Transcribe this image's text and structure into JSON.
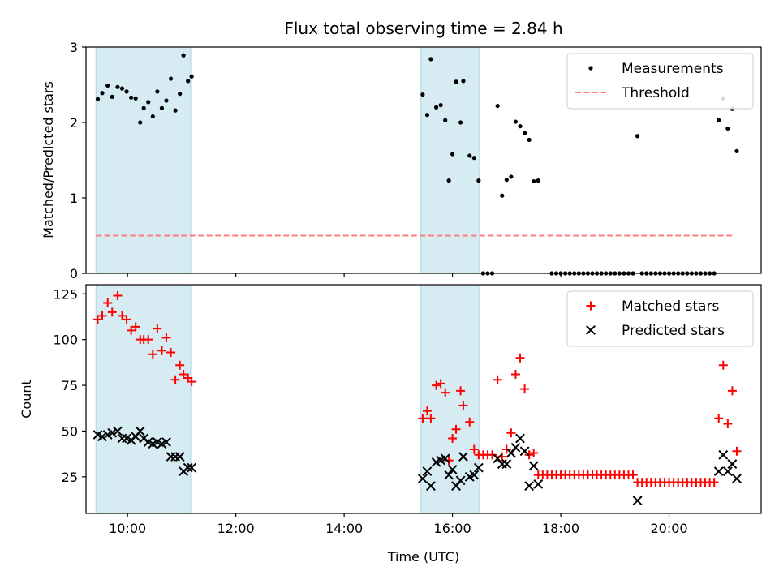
{
  "chart_data": [
    {
      "type": "scatter",
      "title": "Flux total observing time = 2.84 h",
      "ylabel": "Matched/Predicted stars",
      "xlabel": "",
      "xlim": [
        "09:14",
        "21:42"
      ],
      "ylim": [
        0,
        3
      ],
      "yticks": [
        0,
        1,
        2,
        3
      ],
      "legend": {
        "placement": "top-right",
        "entries": [
          "Measurements",
          "Threshold"
        ]
      },
      "highlight_spans": [
        [
          "09:25",
          "11:10"
        ],
        [
          "15:25",
          "16:30"
        ]
      ],
      "threshold": {
        "name": "Threshold",
        "value": 0.5,
        "x": [
          "09:25",
          "21:10"
        ],
        "color": "#ff7f7f",
        "style": "dashed"
      },
      "series": [
        {
          "name": "Measurements",
          "marker": "dot",
          "color": "#000000",
          "points": [
            [
              "09:27",
              2.31
            ],
            [
              "09:32",
              2.39
            ],
            [
              "09:38",
              2.49
            ],
            [
              "09:43",
              2.34
            ],
            [
              "09:49",
              2.47
            ],
            [
              "09:54",
              2.45
            ],
            [
              "09:59",
              2.41
            ],
            [
              "10:04",
              2.33
            ],
            [
              "10:09",
              2.32
            ],
            [
              "10:14",
              2.0
            ],
            [
              "10:18",
              2.19
            ],
            [
              "10:23",
              2.27
            ],
            [
              "10:28",
              2.08
            ],
            [
              "10:33",
              2.41
            ],
            [
              "10:38",
              2.19
            ],
            [
              "10:43",
              2.29
            ],
            [
              "10:48",
              2.58
            ],
            [
              "10:53",
              2.16
            ],
            [
              "10:58",
              2.38
            ],
            [
              "11:02",
              2.89
            ],
            [
              "11:07",
              2.55
            ],
            [
              "11:11",
              2.61
            ],
            [
              "15:27",
              2.37
            ],
            [
              "15:32",
              2.1
            ],
            [
              "15:36",
              2.84
            ],
            [
              "15:42",
              2.2
            ],
            [
              "15:47",
              2.23
            ],
            [
              "15:52",
              2.03
            ],
            [
              "15:56",
              1.23
            ],
            [
              "16:00",
              1.58
            ],
            [
              "16:04",
              2.54
            ],
            [
              "16:09",
              2.0
            ],
            [
              "16:12",
              2.55
            ],
            [
              "16:19",
              1.56
            ],
            [
              "16:24",
              1.53
            ],
            [
              "16:29",
              1.23
            ],
            [
              "16:34",
              0
            ],
            [
              "16:39",
              0
            ],
            [
              "16:44",
              0
            ],
            [
              "16:50",
              2.22
            ],
            [
              "16:55",
              1.03
            ],
            [
              "17:00",
              1.24
            ],
            [
              "17:05",
              1.28
            ],
            [
              "17:10",
              2.01
            ],
            [
              "17:15",
              1.95
            ],
            [
              "17:20",
              1.86
            ],
            [
              "17:25",
              1.77
            ],
            [
              "17:30",
              1.22
            ],
            [
              "17:35",
              1.23
            ],
            [
              "17:50",
              0
            ],
            [
              "17:55",
              0
            ],
            [
              "18:00",
              0
            ],
            [
              "18:05",
              0
            ],
            [
              "18:10",
              0
            ],
            [
              "18:15",
              0
            ],
            [
              "18:20",
              0
            ],
            [
              "18:25",
              0
            ],
            [
              "18:30",
              0
            ],
            [
              "18:35",
              0
            ],
            [
              "18:40",
              0
            ],
            [
              "18:45",
              0
            ],
            [
              "18:50",
              0
            ],
            [
              "18:55",
              0
            ],
            [
              "19:00",
              0
            ],
            [
              "19:05",
              0
            ],
            [
              "19:10",
              0
            ],
            [
              "19:15",
              0
            ],
            [
              "19:20",
              0
            ],
            [
              "19:25",
              1.82
            ],
            [
              "19:30",
              0
            ],
            [
              "19:35",
              0
            ],
            [
              "19:40",
              0
            ],
            [
              "19:45",
              0
            ],
            [
              "19:50",
              0
            ],
            [
              "19:55",
              0
            ],
            [
              "20:00",
              0
            ],
            [
              "20:05",
              0
            ],
            [
              "20:10",
              0
            ],
            [
              "20:15",
              0
            ],
            [
              "20:20",
              0
            ],
            [
              "20:25",
              0
            ],
            [
              "20:30",
              0
            ],
            [
              "20:35",
              0
            ],
            [
              "20:40",
              0
            ],
            [
              "20:45",
              0
            ],
            [
              "20:50",
              0
            ],
            [
              "20:55",
              2.03
            ],
            [
              "21:00",
              2.32
            ],
            [
              "21:05",
              1.92
            ],
            [
              "21:10",
              2.18
            ],
            [
              "21:15",
              1.62
            ]
          ]
        }
      ]
    },
    {
      "type": "scatter",
      "title": "",
      "ylabel": "Count",
      "xlabel": "Time (UTC)",
      "xlim": [
        "09:14",
        "21:42"
      ],
      "ylim": [
        5,
        130
      ],
      "yticks": [
        25,
        50,
        75,
        100,
        125
      ],
      "xticks": [
        "10:00",
        "12:00",
        "14:00",
        "16:00",
        "18:00",
        "20:00"
      ],
      "legend": {
        "placement": "top-right",
        "entries": [
          "Matched stars",
          "Predicted stars"
        ]
      },
      "highlight_spans": [
        [
          "09:25",
          "11:10"
        ],
        [
          "15:25",
          "16:30"
        ]
      ],
      "series": [
        {
          "name": "Matched stars",
          "marker": "plus",
          "color": "#ff0000",
          "points": [
            [
              "09:27",
              111
            ],
            [
              "09:32",
              113
            ],
            [
              "09:38",
              120
            ],
            [
              "09:43",
              115
            ],
            [
              "09:49",
              124
            ],
            [
              "09:54",
              113
            ],
            [
              "09:59",
              111
            ],
            [
              "10:04",
              105
            ],
            [
              "10:09",
              107
            ],
            [
              "10:14",
              100
            ],
            [
              "10:18",
              100
            ],
            [
              "10:23",
              100
            ],
            [
              "10:28",
              92
            ],
            [
              "10:33",
              106
            ],
            [
              "10:38",
              94
            ],
            [
              "10:43",
              101
            ],
            [
              "10:48",
              93
            ],
            [
              "10:53",
              78
            ],
            [
              "10:58",
              86
            ],
            [
              "11:02",
              81
            ],
            [
              "11:07",
              79
            ],
            [
              "11:11",
              77
            ],
            [
              "15:27",
              57
            ],
            [
              "15:32",
              61
            ],
            [
              "15:36",
              57
            ],
            [
              "15:42",
              75
            ],
            [
              "15:47",
              76
            ],
            [
              "15:52",
              71
            ],
            [
              "15:56",
              34
            ],
            [
              "16:00",
              46
            ],
            [
              "16:04",
              51
            ],
            [
              "16:09",
              72
            ],
            [
              "16:12",
              64
            ],
            [
              "16:19",
              55
            ],
            [
              "16:24",
              40
            ],
            [
              "16:29",
              37
            ],
            [
              "16:34",
              37
            ],
            [
              "16:39",
              37
            ],
            [
              "16:44",
              37
            ],
            [
              "16:50",
              78
            ],
            [
              "16:55",
              36
            ],
            [
              "17:00",
              40
            ],
            [
              "17:05",
              49
            ],
            [
              "17:10",
              81
            ],
            [
              "17:15",
              90
            ],
            [
              "17:20",
              73
            ],
            [
              "17:25",
              37
            ],
            [
              "17:30",
              38
            ],
            [
              "17:35",
              26
            ],
            [
              "17:40",
              26
            ],
            [
              "17:45",
              26
            ],
            [
              "17:50",
              26
            ],
            [
              "17:55",
              26
            ],
            [
              "18:00",
              26
            ],
            [
              "18:05",
              26
            ],
            [
              "18:10",
              26
            ],
            [
              "18:15",
              26
            ],
            [
              "18:20",
              26
            ],
            [
              "18:25",
              26
            ],
            [
              "18:30",
              26
            ],
            [
              "18:35",
              26
            ],
            [
              "18:40",
              26
            ],
            [
              "18:45",
              26
            ],
            [
              "18:50",
              26
            ],
            [
              "18:55",
              26
            ],
            [
              "19:00",
              26
            ],
            [
              "19:05",
              26
            ],
            [
              "19:10",
              26
            ],
            [
              "19:15",
              26
            ],
            [
              "19:20",
              26
            ],
            [
              "19:25",
              22
            ],
            [
              "19:30",
              22
            ],
            [
              "19:35",
              22
            ],
            [
              "19:40",
              22
            ],
            [
              "19:45",
              22
            ],
            [
              "19:50",
              22
            ],
            [
              "19:55",
              22
            ],
            [
              "20:00",
              22
            ],
            [
              "20:05",
              22
            ],
            [
              "20:10",
              22
            ],
            [
              "20:15",
              22
            ],
            [
              "20:20",
              22
            ],
            [
              "20:25",
              22
            ],
            [
              "20:30",
              22
            ],
            [
              "20:35",
              22
            ],
            [
              "20:40",
              22
            ],
            [
              "20:45",
              22
            ],
            [
              "20:50",
              22
            ],
            [
              "20:55",
              57
            ],
            [
              "21:00",
              86
            ],
            [
              "21:05",
              54
            ],
            [
              "21:10",
              72
            ],
            [
              "21:15",
              39
            ]
          ]
        },
        {
          "name": "Predicted stars",
          "marker": "x",
          "color": "#000000",
          "points": [
            [
              "09:27",
              48
            ],
            [
              "09:32",
              47
            ],
            [
              "09:38",
              48
            ],
            [
              "09:43",
              49
            ],
            [
              "09:49",
              50
            ],
            [
              "09:54",
              46
            ],
            [
              "09:59",
              46
            ],
            [
              "10:04",
              45
            ],
            [
              "10:09",
              47
            ],
            [
              "10:14",
              50
            ],
            [
              "10:18",
              46
            ],
            [
              "10:23",
              44
            ],
            [
              "10:28",
              43
            ],
            [
              "10:33",
              44
            ],
            [
              "10:38",
              43
            ],
            [
              "10:43",
              44
            ],
            [
              "10:48",
              36
            ],
            [
              "10:53",
              36
            ],
            [
              "10:58",
              36
            ],
            [
              "11:02",
              28
            ],
            [
              "11:07",
              30
            ],
            [
              "11:11",
              30
            ],
            [
              "15:27",
              24
            ],
            [
              "15:32",
              28
            ],
            [
              "15:36",
              20
            ],
            [
              "15:42",
              33
            ],
            [
              "15:47",
              34
            ],
            [
              "15:52",
              35
            ],
            [
              "15:56",
              26
            ],
            [
              "16:00",
              29
            ],
            [
              "16:04",
              20
            ],
            [
              "16:09",
              23
            ],
            [
              "16:12",
              36
            ],
            [
              "16:19",
              25
            ],
            [
              "16:24",
              26
            ],
            [
              "16:29",
              30
            ],
            [
              "16:50",
              35
            ],
            [
              "16:55",
              32
            ],
            [
              "17:00",
              32
            ],
            [
              "17:05",
              38
            ],
            [
              "17:10",
              41
            ],
            [
              "17:15",
              46
            ],
            [
              "17:20",
              39
            ],
            [
              "17:25",
              20
            ],
            [
              "17:30",
              31
            ],
            [
              "17:35",
              21
            ],
            [
              "19:25",
              12
            ],
            [
              "20:55",
              28
            ],
            [
              "21:00",
              37
            ],
            [
              "21:05",
              28
            ],
            [
              "21:10",
              32
            ],
            [
              "21:15",
              24
            ]
          ]
        }
      ]
    }
  ]
}
